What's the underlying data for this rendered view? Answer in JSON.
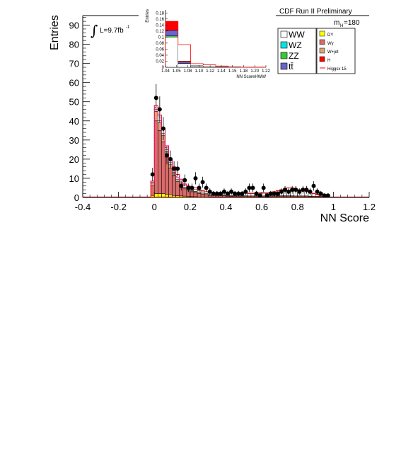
{
  "header": {
    "experiment": "CDF Run II Preliminary",
    "luminosity": "L=9.7fb",
    "lumi_exp": "-1",
    "mass_label": "m",
    "mass_sub": "H",
    "mass_value": "=180"
  },
  "chart_data": [
    {
      "type": "bar",
      "title": "",
      "xlabel": "NN Score",
      "ylabel": "Entries",
      "xlim": [
        -0.4,
        1.2
      ],
      "ylim": [
        0,
        95
      ],
      "x_ticks": [
        "-0.4",
        "-0.2",
        "0",
        "0.2",
        "0.4",
        "0.6",
        "0.8",
        "1",
        "1.2"
      ],
      "y_ticks": [
        "0",
        "10",
        "20",
        "30",
        "40",
        "50",
        "60",
        "70",
        "80",
        "90"
      ],
      "bin_edges": [
        -0.02,
        0.0,
        0.02,
        0.04,
        0.06,
        0.08,
        0.1,
        0.12,
        0.14,
        0.16,
        0.18,
        0.2,
        0.22,
        0.24,
        0.26,
        0.28,
        0.3,
        0.32,
        0.34,
        0.36,
        0.38,
        0.4,
        0.42,
        0.44,
        0.46,
        0.48,
        0.5,
        0.52,
        0.54,
        0.56,
        0.58,
        0.6,
        0.62,
        0.64,
        0.66,
        0.68,
        0.7,
        0.72,
        0.74,
        0.76,
        0.78,
        0.8,
        0.82,
        0.84,
        0.86,
        0.88,
        0.9,
        0.92,
        0.94,
        0.96,
        0.98,
        1.0
      ],
      "stack_series": [
        {
          "name": "DY",
          "color": "#ffff00",
          "values": [
            1.0,
            2.0,
            2.0,
            2.0,
            1.6,
            1.2,
            1.0,
            0.9,
            0.8,
            0.7,
            0.6,
            0.5,
            0.4,
            0.3,
            0.3,
            0.3,
            0.2,
            0.2,
            0.2,
            0.2,
            0.2,
            0.2,
            0.2,
            0.2,
            0.2,
            0.2,
            0.2,
            0.2,
            0.2,
            0.2,
            0.2,
            0.2,
            0.2,
            0.2,
            0.2,
            0.2,
            0.2,
            0.2,
            0.2,
            0.2,
            0.2,
            0.2,
            0.2,
            0.2,
            0.2,
            0.2,
            0.2,
            0.2,
            0.1,
            0.1
          ]
        },
        {
          "name": "Wγ",
          "color": "#d96a6a",
          "values": [
            5.0,
            38.0,
            33.0,
            27.0,
            19.5,
            14.0,
            10.3,
            7.4,
            5.8,
            3.8,
            2.8,
            2.5,
            2.2,
            1.8,
            1.5,
            1.2,
            0.9,
            0.9,
            0.8,
            0.7,
            0.7,
            0.5,
            0.4,
            0.3,
            0.3,
            0.3,
            0.3,
            0.2,
            0.2,
            0.2,
            0.2,
            0.2,
            0.2,
            0.2,
            0.2,
            0.3,
            0.3,
            0.3,
            0.3,
            0.3,
            0.2,
            0.2,
            0.2,
            0.2,
            0.2,
            0.1,
            0.1,
            0.1,
            0.1,
            0.1
          ]
        },
        {
          "name": "W+jet",
          "color": "#d9a577",
          "values": [
            1.5,
            5.0,
            4.0,
            3.5,
            2.8,
            2.2,
            1.7,
            1.3,
            1.0,
            0.9,
            0.8,
            0.7,
            0.6,
            0.5,
            0.5,
            0.5,
            0.4,
            0.4,
            0.4,
            0.4,
            0.4,
            0.4,
            0.4,
            0.4,
            0.4,
            0.4,
            0.4,
            0.4,
            0.4,
            0.4,
            0.4,
            0.4,
            0.4,
            0.4,
            0.4,
            0.4,
            0.4,
            0.4,
            0.4,
            0.4,
            0.4,
            0.4,
            0.4,
            0.4,
            0.3,
            0.3,
            0.3,
            0.3,
            0.2,
            0.2
          ]
        },
        {
          "name": "WW",
          "color": "#ffffff",
          "values": [
            0.5,
            1.0,
            1.0,
            1.0,
            1.0,
            1.0,
            1.0,
            1.0,
            1.0,
            1.0,
            1.0,
            1.0,
            1.0,
            1.0,
            1.0,
            1.0,
            1.0,
            1.0,
            1.0,
            1.0,
            1.0,
            1.0,
            1.2,
            1.2,
            1.2,
            1.2,
            1.2,
            1.2,
            1.2,
            1.2,
            1.4,
            1.4,
            1.4,
            1.6,
            1.8,
            2.0,
            2.2,
            2.4,
            2.6,
            2.8,
            2.8,
            2.8,
            2.6,
            2.4,
            2.2,
            1.6,
            1.2,
            0.8,
            0.4,
            0.2
          ]
        }
      ],
      "signal_series": {
        "name": "Higgsx 15",
        "color": "#ff0000",
        "values": [
          8.5,
          48.0,
          43.0,
          36.0,
          27.0,
          20.0,
          16.0,
          12.0,
          9.5,
          7.0,
          6.0,
          5.5,
          5.0,
          4.0,
          3.5,
          3.0,
          2.5,
          2.5,
          2.5,
          2.3,
          2.3,
          2.3,
          2.3,
          2.2,
          2.2,
          2.2,
          2.2,
          2.2,
          2.2,
          2.2,
          2.4,
          2.4,
          2.4,
          2.6,
          3.0,
          3.5,
          4.0,
          4.5,
          5.0,
          5.0,
          4.5,
          4.0,
          3.5,
          3.0,
          2.5,
          2.0,
          1.5,
          1.0,
          0.6,
          0.3
        ]
      },
      "data_points": {
        "x": [
          -0.01,
          0.01,
          0.03,
          0.05,
          0.07,
          0.09,
          0.11,
          0.13,
          0.15,
          0.17,
          0.19,
          0.21,
          0.23,
          0.25,
          0.27,
          0.29,
          0.31,
          0.33,
          0.35,
          0.37,
          0.39,
          0.41,
          0.43,
          0.45,
          0.47,
          0.49,
          0.51,
          0.53,
          0.55,
          0.57,
          0.59,
          0.61,
          0.63,
          0.65,
          0.67,
          0.69,
          0.71,
          0.73,
          0.75,
          0.77,
          0.79,
          0.81,
          0.83,
          0.85,
          0.87,
          0.89,
          0.91,
          0.93,
          0.95,
          0.97
        ],
        "y": [
          12,
          52,
          46,
          36,
          22,
          20,
          15,
          15,
          6,
          9,
          5,
          5,
          10,
          5,
          8,
          5,
          3,
          2,
          2,
          2,
          3,
          2,
          3,
          2,
          2,
          2,
          3,
          5,
          5,
          2,
          1,
          5,
          1,
          2,
          2,
          2,
          3,
          4,
          3,
          4,
          4,
          3,
          4,
          4,
          3,
          6,
          3,
          2,
          1,
          1
        ]
      }
    },
    {
      "type": "bar",
      "title": "",
      "xlabel": "NN ScoreHWW",
      "ylabel": "Entries",
      "ylim": [
        0,
        0.19
      ],
      "x_ticks": [
        "1.04",
        "1.05",
        "1.08",
        "1.10",
        "1.12",
        "1.14",
        "1.15",
        "1.18",
        "1.20",
        "1.22"
      ],
      "y_ticks": [
        "0",
        "0.02",
        "0.04",
        "0.06",
        "0.08",
        "0.1",
        "0.12",
        "0.14",
        "0.16",
        "0.18"
      ],
      "bins": 8,
      "stack_series": [
        {
          "name": "WW",
          "color": "#ffffff",
          "values": [
            0.1,
            0.012,
            0.004,
            0.002,
            0.001,
            0.0,
            0.0,
            0.0
          ]
        },
        {
          "name": "ZZ",
          "color": "#33cc33",
          "values": [
            0.004,
            0.001,
            0.0,
            0.0,
            0.0,
            0.0,
            0.0,
            0.0
          ]
        },
        {
          "name": "tt̄",
          "color": "#6666cc",
          "values": [
            0.018,
            0.004,
            0.001,
            0.0,
            0.0,
            0.0,
            0.0,
            0.0
          ]
        },
        {
          "name": "H",
          "color": "#ff0000",
          "values": [
            0.03,
            0.003,
            0.0,
            0.0,
            0.0,
            0.0,
            0.0,
            0.0
          ]
        }
      ],
      "signal_series": {
        "name": "Higgsx 15",
        "color": "#ff0000",
        "values": [
          0.152,
          0.075,
          0.012,
          0.008,
          0.004,
          0.001,
          0.0,
          0.0
        ]
      }
    }
  ],
  "legend": {
    "left": [
      {
        "label": "WW",
        "color": "#ffffff",
        "icon": "box"
      },
      {
        "label": "WZ",
        "color": "#00e5e5",
        "icon": "box"
      },
      {
        "label": "ZZ",
        "color": "#33cc33",
        "icon": "box"
      },
      {
        "label": "tt̄",
        "color": "#6666cc",
        "icon": "box"
      }
    ],
    "right": [
      {
        "label": "DY",
        "color": "#ffff00",
        "icon": "box"
      },
      {
        "label": "Wγ",
        "color": "#d96a6a",
        "icon": "box"
      },
      {
        "label": "W+jet",
        "color": "#d9a577",
        "icon": "box"
      },
      {
        "label": "H",
        "color": "#ff0000",
        "icon": "box"
      },
      {
        "label": "Higgsx 15",
        "color": "#ff0000",
        "icon": "line"
      }
    ]
  }
}
